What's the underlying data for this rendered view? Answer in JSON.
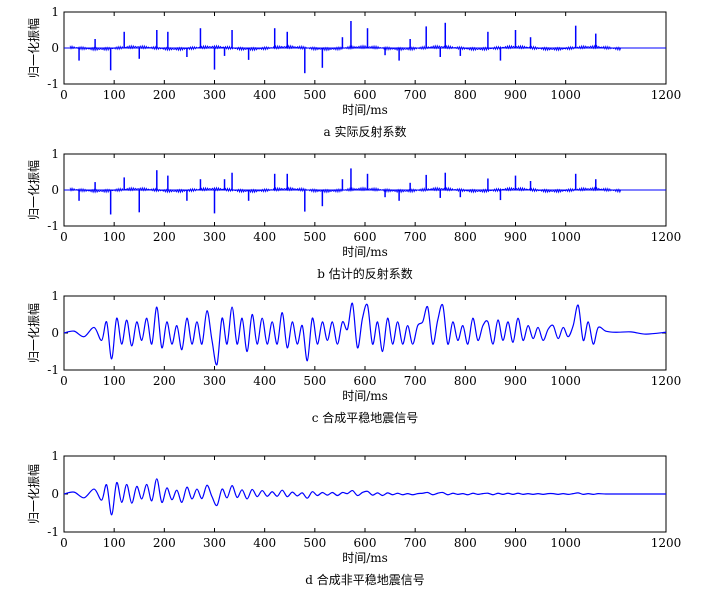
{
  "chart_data": [
    {
      "type": "line",
      "caption": "a  实际反射系数",
      "xlabel": "时间/ms",
      "ylabel": "归一化振幅",
      "xlim": [
        0,
        1200
      ],
      "ylim": [
        -1,
        1
      ],
      "xticks": [
        0,
        100,
        200,
        300,
        400,
        500,
        600,
        700,
        800,
        900,
        1000,
        1200
      ],
      "yticks": [
        -1,
        0,
        1
      ],
      "color": "#0000ff",
      "series": [
        {
          "style": "spikes",
          "x": [
            30,
            62,
            93,
            120,
            150,
            185,
            207,
            245,
            272,
            300,
            320,
            335,
            368,
            420,
            445,
            480,
            515,
            555,
            572,
            605,
            640,
            668,
            690,
            722,
            750,
            760,
            790,
            845,
            870,
            900,
            930,
            1020,
            1060
          ],
          "y": [
            -0.35,
            0.25,
            -0.62,
            0.45,
            -0.3,
            0.5,
            0.45,
            -0.25,
            0.55,
            -0.6,
            -0.22,
            0.5,
            -0.33,
            0.55,
            0.45,
            -0.7,
            -0.55,
            0.3,
            0.75,
            0.55,
            -0.2,
            -0.35,
            0.25,
            0.6,
            -0.25,
            0.7,
            -0.22,
            0.45,
            -0.35,
            0.5,
            0.3,
            0.62,
            0.4
          ]
        }
      ]
    },
    {
      "type": "line",
      "caption": "b  估计的反射系数",
      "xlabel": "时间/ms",
      "ylabel": "归一化振幅",
      "xlim": [
        0,
        1200
      ],
      "ylim": [
        -1,
        1
      ],
      "xticks": [
        0,
        100,
        200,
        300,
        400,
        500,
        600,
        700,
        800,
        900,
        1000,
        1200
      ],
      "yticks": [
        -1,
        0,
        1
      ],
      "color": "#0000ff",
      "series": [
        {
          "style": "spikes",
          "x": [
            30,
            62,
            93,
            120,
            150,
            185,
            207,
            245,
            272,
            300,
            320,
            335,
            368,
            420,
            445,
            480,
            515,
            555,
            572,
            605,
            640,
            668,
            690,
            722,
            750,
            760,
            790,
            845,
            870,
            900,
            930,
            1020,
            1060
          ],
          "y": [
            -0.3,
            0.22,
            -0.68,
            0.35,
            -0.62,
            0.55,
            0.4,
            -0.3,
            0.3,
            -0.65,
            0.3,
            0.48,
            -0.3,
            0.45,
            0.45,
            -0.6,
            -0.45,
            0.3,
            0.6,
            0.45,
            -0.2,
            -0.3,
            0.2,
            0.42,
            -0.22,
            0.48,
            -0.2,
            0.32,
            -0.28,
            0.4,
            0.25,
            0.45,
            0.3
          ]
        }
      ]
    },
    {
      "type": "line",
      "caption": "c  合成平稳地震信号",
      "xlabel": "时间/ms",
      "ylabel": "归一化振幅",
      "xlim": [
        0,
        1200
      ],
      "ylim": [
        -1,
        1
      ],
      "xticks": [
        0,
        100,
        200,
        300,
        400,
        500,
        600,
        700,
        800,
        900,
        1000,
        1200
      ],
      "yticks": [
        -1,
        0,
        1
      ],
      "color": "#0000ff",
      "series": [
        {
          "style": "wave",
          "x": [
            0,
            20,
            40,
            60,
            75,
            85,
            95,
            105,
            115,
            125,
            135,
            145,
            155,
            165,
            175,
            185,
            195,
            205,
            215,
            225,
            235,
            245,
            255,
            265,
            275,
            285,
            295,
            305,
            315,
            325,
            335,
            345,
            355,
            365,
            375,
            385,
            395,
            405,
            415,
            425,
            435,
            445,
            455,
            465,
            475,
            485,
            495,
            505,
            515,
            525,
            535,
            545,
            555,
            565,
            575,
            585,
            595,
            605,
            615,
            625,
            635,
            645,
            655,
            665,
            675,
            685,
            695,
            705,
            715,
            725,
            735,
            745,
            755,
            765,
            775,
            785,
            795,
            805,
            815,
            825,
            835,
            845,
            855,
            865,
            875,
            885,
            895,
            905,
            915,
            925,
            935,
            945,
            955,
            965,
            975,
            985,
            995,
            1005,
            1015,
            1025,
            1035,
            1045,
            1055,
            1065,
            1080,
            1100,
            1130,
            1160,
            1200
          ],
          "y": [
            0,
            0.05,
            -0.1,
            0.15,
            -0.2,
            0.3,
            -0.7,
            0.4,
            -0.3,
            0.35,
            -0.35,
            0.3,
            -0.2,
            0.4,
            -0.3,
            0.7,
            -0.4,
            0.3,
            -0.3,
            0.2,
            -0.45,
            0.4,
            -0.3,
            0.3,
            -0.3,
            0.6,
            -0.2,
            -0.85,
            0.4,
            -0.3,
            0.7,
            -0.3,
            0.4,
            -0.5,
            0.5,
            -0.3,
            0.4,
            -0.3,
            0.3,
            -0.3,
            0.55,
            -0.4,
            0.3,
            -0.3,
            0.2,
            -0.75,
            0.4,
            -0.3,
            0.3,
            -0.2,
            0.3,
            -0.3,
            0.3,
            0.1,
            0.8,
            -0.4,
            0.4,
            0.75,
            -0.3,
            0.3,
            -0.5,
            0.4,
            -0.3,
            0.3,
            -0.3,
            0.2,
            -0.3,
            0.2,
            0.3,
            0.7,
            -0.3,
            0.35,
            0.75,
            -0.3,
            0.3,
            -0.2,
            0.2,
            -0.3,
            0.4,
            -0.2,
            0.2,
            0.3,
            -0.3,
            0.35,
            -0.2,
            0.3,
            -0.25,
            0.4,
            -0.2,
            0.2,
            -0.15,
            0.15,
            -0.2,
            0.1,
            0.2,
            -0.15,
            0.15,
            -0.1,
            0.2,
            0.75,
            -0.2,
            0.3,
            -0.3,
            0.15,
            0.05,
            0.02,
            0.03,
            -0.03,
            0.02
          ]
        }
      ]
    },
    {
      "type": "line",
      "caption": "d  合成非平稳地震信号",
      "xlabel": "时间/ms",
      "ylabel": "归一化振幅",
      "xlim": [
        0,
        1200
      ],
      "ylim": [
        -1,
        1
      ],
      "xticks": [
        0,
        100,
        200,
        300,
        400,
        500,
        600,
        700,
        800,
        900,
        1000,
        1200
      ],
      "yticks": [
        -1,
        0,
        1
      ],
      "color": "#0000ff",
      "series": [
        {
          "style": "wave",
          "x": [
            0,
            20,
            40,
            60,
            75,
            85,
            95,
            105,
            115,
            125,
            135,
            145,
            155,
            165,
            175,
            185,
            195,
            205,
            215,
            225,
            235,
            245,
            255,
            265,
            275,
            285,
            295,
            305,
            315,
            325,
            335,
            345,
            355,
            365,
            375,
            385,
            395,
            405,
            415,
            425,
            435,
            445,
            455,
            465,
            475,
            485,
            495,
            505,
            515,
            525,
            535,
            545,
            555,
            565,
            575,
            585,
            595,
            605,
            615,
            625,
            635,
            645,
            655,
            665,
            675,
            685,
            695,
            705,
            715,
            725,
            735,
            745,
            755,
            765,
            775,
            785,
            795,
            805,
            815,
            825,
            835,
            845,
            855,
            865,
            875,
            885,
            895,
            905,
            915,
            925,
            935,
            945,
            955,
            965,
            975,
            985,
            995,
            1005,
            1015,
            1025,
            1035,
            1045,
            1055,
            1065,
            1080,
            1100,
            1130,
            1160,
            1200
          ],
          "y": [
            0,
            0.05,
            -0.1,
            0.13,
            -0.16,
            0.24,
            -0.55,
            0.3,
            -0.22,
            0.25,
            -0.24,
            0.2,
            -0.13,
            0.25,
            -0.18,
            0.4,
            -0.22,
            0.16,
            -0.15,
            0.1,
            -0.22,
            0.18,
            -0.13,
            0.13,
            -0.12,
            0.23,
            -0.07,
            -0.3,
            0.13,
            -0.1,
            0.22,
            -0.09,
            0.11,
            -0.13,
            0.12,
            -0.07,
            0.09,
            -0.06,
            0.06,
            -0.06,
            0.1,
            -0.07,
            0.05,
            -0.05,
            0.03,
            -0.11,
            0.06,
            -0.04,
            0.04,
            -0.03,
            0.04,
            -0.04,
            0.04,
            0.01,
            0.09,
            -0.04,
            0.04,
            0.07,
            -0.03,
            0.03,
            -0.04,
            0.03,
            -0.02,
            0.02,
            -0.02,
            0.01,
            -0.02,
            0.01,
            0.02,
            0.04,
            -0.02,
            0.02,
            0.04,
            -0.02,
            0.02,
            -0.01,
            0.01,
            -0.02,
            0.02,
            -0.01,
            0.01,
            0.02,
            -0.02,
            0.02,
            -0.01,
            0.02,
            -0.01,
            0.02,
            -0.01,
            0.01,
            -0.01,
            0.01,
            -0.01,
            0.01,
            0.01,
            -0.01,
            0.01,
            -0.01,
            0.01,
            0.03,
            -0.01,
            0.01,
            -0.01,
            0.01,
            0,
            0,
            0,
            0,
            0
          ]
        }
      ]
    }
  ]
}
